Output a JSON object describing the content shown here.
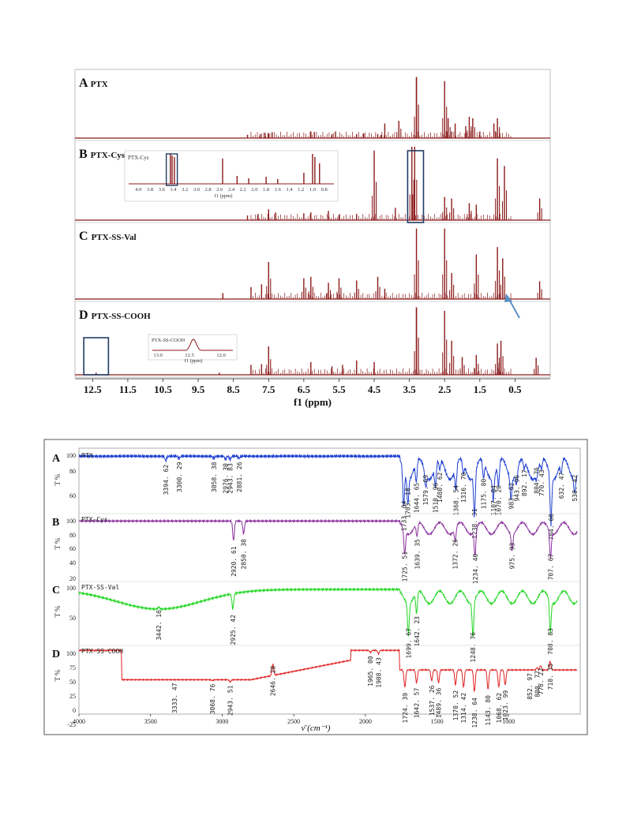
{
  "nmr": {
    "panels": [
      {
        "letter": "A",
        "name": "PTX"
      },
      {
        "letter": "B",
        "name": "PTX-Cys"
      },
      {
        "letter": "C",
        "name": "PTX-SS-Val"
      },
      {
        "letter": "D",
        "name": "PTX-SS-COOH"
      }
    ],
    "xlabel": "f1 (ppm)",
    "ticks": [
      "12.5",
      "11.5",
      "10.5",
      "9.5",
      "8.5",
      "7.5",
      "6.5",
      "5.5",
      "4.5",
      "3.5",
      "2.5",
      "1.5",
      "0.5"
    ],
    "insetB": {
      "title": "PTX-Cys",
      "ticks": [
        "4.0",
        "3.8",
        "3.6",
        "3.4",
        "3.2",
        "3.0",
        "2.8",
        "2.6",
        "2.4",
        "2.2",
        "2.0",
        "1.8",
        "1.6",
        "1.4",
        "1.2",
        "1.0",
        "0.8"
      ],
      "xlabel": "f1 (ppm)"
    },
    "insetD": {
      "title": "PTX-SS-COOH",
      "ticks": [
        "13.0",
        "12.5",
        "12.0"
      ],
      "xlabel": "f1 (ppm)"
    }
  },
  "ir": {
    "ylabel": "T %",
    "xlabel": "ν̄ (cm⁻¹)",
    "xticks": [
      "4000",
      "3500",
      "3000",
      "2500",
      "2000",
      "1500",
      "1000"
    ],
    "panels": [
      {
        "letter": "A",
        "name": "PTX",
        "yticks": [
          "100",
          "80",
          "60"
        ],
        "peaks": [
          "3394. 62",
          "3300. 29",
          "3058. 38",
          "2976. 30",
          "2943. 83",
          "2881. 26",
          "1733. 04",
          "1703. 18",
          "1644. 65",
          "1579. 69",
          "1510. 96",
          "1480. 62",
          "1368. 54",
          "1316. 70",
          "1238. 31",
          "1175. 80",
          "1107. 04",
          "1070. 20",
          "983. 62",
          "943. 96",
          "892. 17",
          "804. 76",
          "770. 43",
          "704. 68",
          "632. 47",
          "538. 42"
        ]
      },
      {
        "letter": "B",
        "name": "PTX-Cys",
        "yticks": [
          "100",
          "80",
          "60",
          "40",
          "20"
        ],
        "peaks": [
          "2920. 61",
          "2850. 38",
          "1725. 51",
          "1639. 35",
          "1372. 26",
          "1234. 40",
          "975. 93",
          "707. 67"
        ]
      },
      {
        "letter": "C",
        "name": "PTX-SS-Val",
        "yticks": [
          "100",
          "50"
        ],
        "peaks": [
          "3442. 16",
          "2925. 42",
          "1699. 67",
          "1642. 23",
          "1248. 76",
          "708. 83"
        ]
      },
      {
        "letter": "D",
        "name": "PTX-SS-COOH",
        "yticks": [
          "100",
          "75",
          "50",
          "25",
          "0",
          "-25"
        ],
        "peaks": [
          "3333. 47",
          "3068. 76",
          "2943. 51",
          "2646. 28",
          "1965. 00",
          "1908. 43",
          "1724. 39",
          "1642. 57",
          "1537. 26",
          "1489. 36",
          "1370. 52",
          "1314. 42",
          "1238. 64",
          "1143. 80",
          "1068. 62",
          "1023. 99",
          "852. 97",
          "800. 77",
          "776. 22",
          "710. 35"
        ]
      }
    ]
  },
  "chart_data": [
    {
      "type": "line",
      "title": "",
      "xlabel": "f1 (ppm)",
      "ylabel": "",
      "x_reversed": true,
      "xlim": [
        13.0,
        -0.5
      ],
      "series": [
        {
          "name": "PTX",
          "peaks_ppm": [
            8.1,
            7.74,
            7.6,
            7.5,
            7.4,
            6.3,
            6.2,
            5.7,
            5.6,
            5.0,
            4.8,
            4.4,
            4.3,
            4.2,
            3.8,
            3.3,
            3.3,
            2.5,
            2.4,
            2.3,
            2.2,
            1.9,
            1.8,
            1.7,
            1.5,
            1.1,
            1.0
          ]
        },
        {
          "name": "PTX-Cys",
          "peaks_ppm": [
            8.1,
            7.8,
            7.5,
            7.3,
            6.5,
            6.3,
            5.8,
            5.5,
            5.0,
            4.5,
            3.9,
            3.43,
            3.35,
            2.5,
            2.3,
            1.8,
            1.6,
            1.0,
            0.8,
            -0.2
          ]
        },
        {
          "name": "PTX-SS-Val",
          "peaks_ppm": [
            8.8,
            8.0,
            7.7,
            7.5,
            6.5,
            6.3,
            5.8,
            5.5,
            5.0,
            4.4,
            4.2,
            3.3,
            2.5,
            2.3,
            1.6,
            1.0,
            0.85,
            -0.2
          ]
        },
        {
          "name": "PTX-SS-COOH",
          "peaks_ppm": [
            12.4,
            8.9,
            8.0,
            7.7,
            7.5,
            6.3,
            5.7,
            5.4,
            5.0,
            4.5,
            3.3,
            3.3,
            2.5,
            2.3,
            2.0,
            1.6,
            1.0,
            0.9,
            -0.1
          ]
        }
      ]
    },
    {
      "type": "line",
      "title": "",
      "xlabel": "ν̄ (cm⁻¹)",
      "ylabel": "T %",
      "xlim": [
        4000,
        500
      ],
      "x_reversed": true,
      "series": [
        {
          "name": "PTX",
          "ylim": [
            50,
            105
          ],
          "minima": [
            [
              3394.62,
              96
            ],
            [
              3300.29,
              98
            ],
            [
              3058.38,
              98
            ],
            [
              2976.3,
              97
            ],
            [
              2943.83,
              97
            ],
            [
              2881.26,
              98
            ],
            [
              1733.04,
              68
            ],
            [
              1703.18,
              78
            ],
            [
              1644.65,
              82
            ],
            [
              1579.69,
              88
            ],
            [
              1510.96,
              82
            ],
            [
              1480.62,
              90
            ],
            [
              1368.54,
              80
            ],
            [
              1316.7,
              90
            ],
            [
              1238.31,
              62
            ],
            [
              1175.8,
              85
            ],
            [
              1107.04,
              80
            ],
            [
              1070.2,
              80
            ],
            [
              983.62,
              82
            ],
            [
              943.96,
              88
            ],
            [
              892.17,
              92
            ],
            [
              804.76,
              94
            ],
            [
              770.43,
              92
            ],
            [
              704.68,
              58
            ],
            [
              632.47,
              90
            ],
            [
              538.42,
              88
            ]
          ]
        },
        {
          "name": "PTX-Cys",
          "ylim": [
            20,
            110
          ],
          "minima": [
            [
              2920.61,
              70
            ],
            [
              2850.38,
              80
            ],
            [
              1725.51,
              63
            ],
            [
              1639.35,
              80
            ],
            [
              1372.26,
              80
            ],
            [
              1234.4,
              60
            ],
            [
              975.93,
              75
            ],
            [
              707.67,
              60
            ]
          ]
        },
        {
          "name": "PTX-SS-Val",
          "ylim": [
            25,
            110
          ],
          "minima": [
            [
              3442.16,
              78
            ],
            [
              2925.42,
              72
            ],
            [
              1699.67,
              55
            ],
            [
              1642.23,
              70
            ],
            [
              1248.76,
              50
            ],
            [
              708.83,
              55
            ]
          ]
        },
        {
          "name": "PTX-SS-COOH",
          "ylim": [
            -30,
            110
          ],
          "minima": [
            [
              3333.47,
              40
            ],
            [
              3068.76,
              38
            ],
            [
              2943.51,
              35
            ],
            [
              2646.28,
              75
            ],
            [
              1965.0,
              95
            ],
            [
              1908.43,
              92
            ],
            [
              1724.39,
              20
            ],
            [
              1642.57,
              30
            ],
            [
              1537.26,
              35
            ],
            [
              1489.36,
              30
            ],
            [
              1370.52,
              25
            ],
            [
              1314.42,
              20
            ],
            [
              1238.64,
              10
            ],
            [
              1143.8,
              15
            ],
            [
              1068.62,
              20
            ],
            [
              1023.99,
              25
            ],
            [
              852.97,
              60
            ],
            [
              800.77,
              65
            ],
            [
              776.22,
              70
            ],
            [
              710.35,
              80
            ]
          ]
        }
      ]
    }
  ],
  "colors": {
    "nmr": "#8b1a1a",
    "irA": "#1e3fd0",
    "irB": "#8a2e9e",
    "irC": "#22d622",
    "irD": "#e02020",
    "box": "#1f3b63",
    "arrow": "#5a8fc2"
  }
}
